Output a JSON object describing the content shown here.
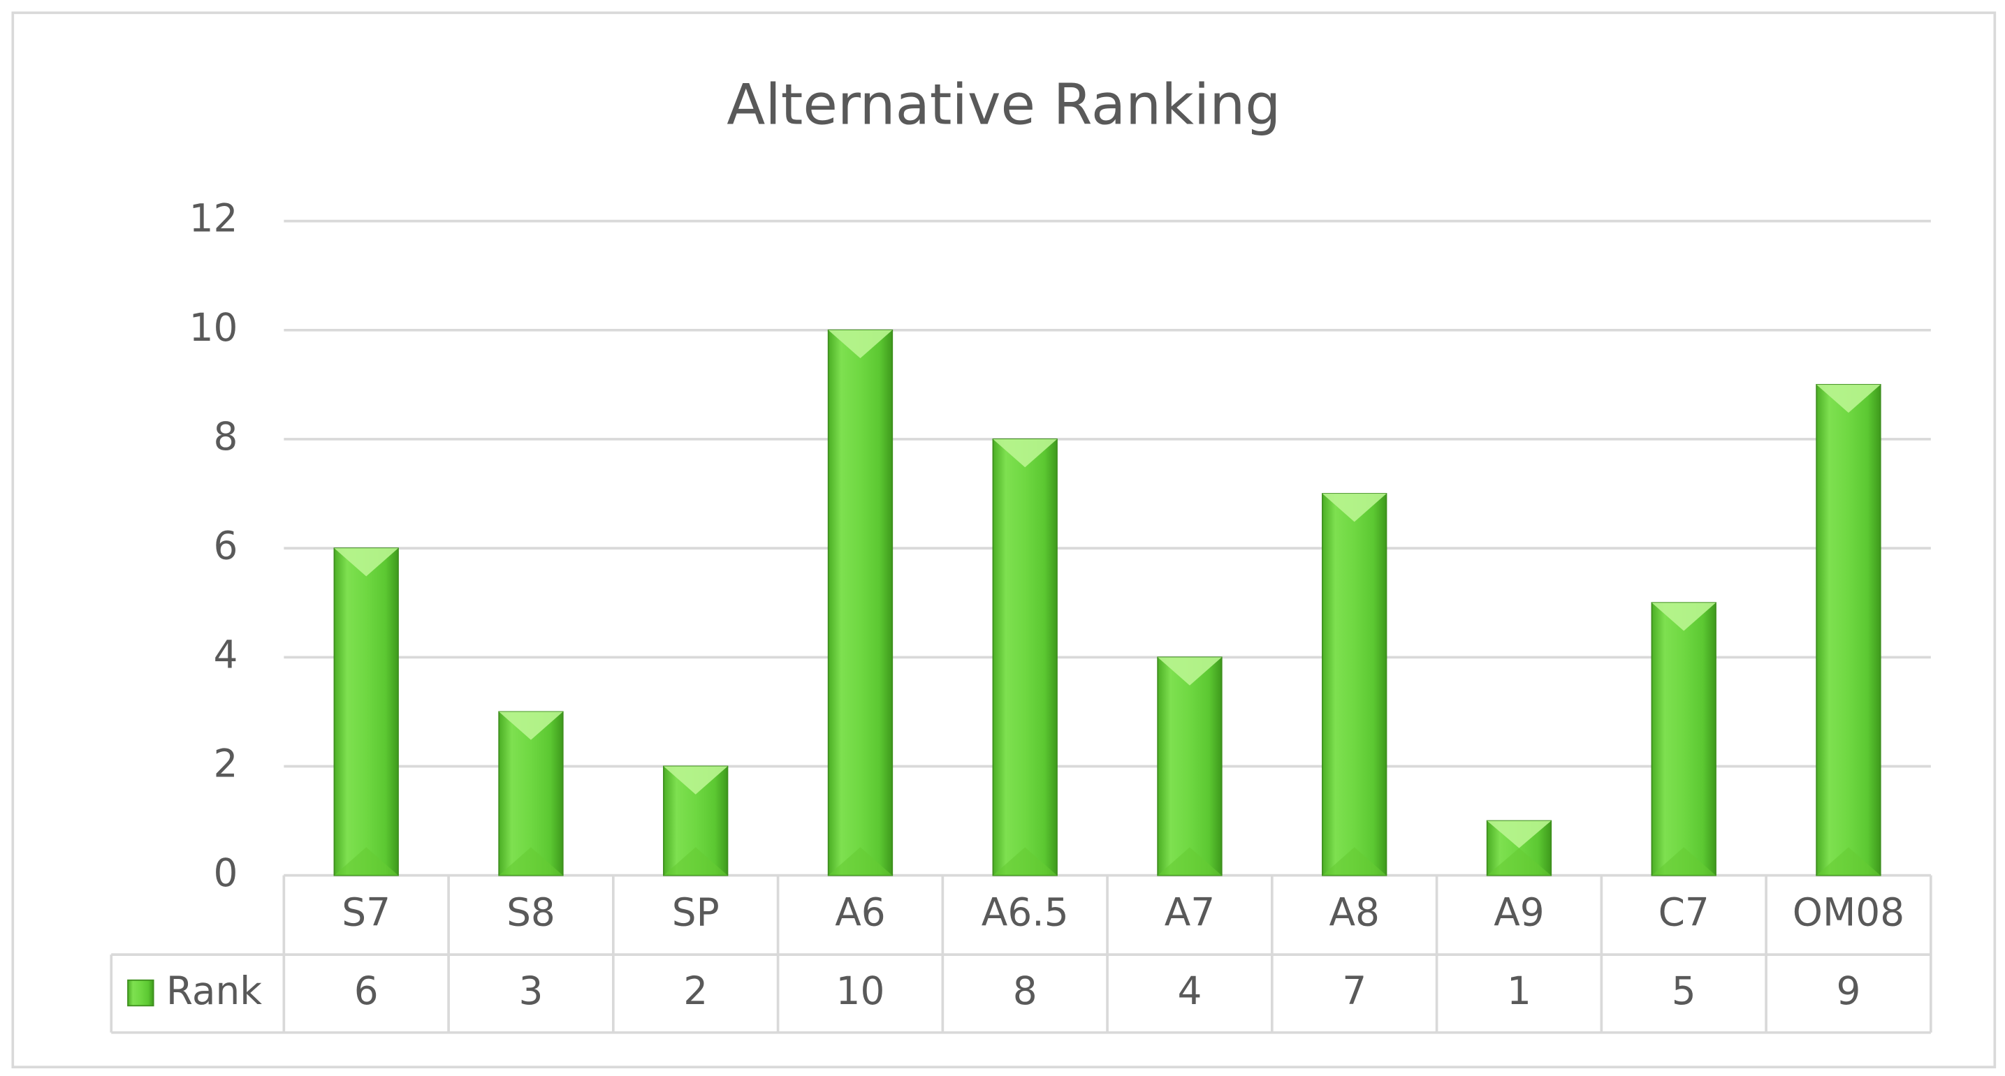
{
  "chart_data": {
    "type": "bar",
    "title": "Alternative Ranking",
    "categories": [
      "S7",
      "S8",
      "SP",
      "A6",
      "A6.5",
      "A7",
      "A8",
      "A9",
      "C7",
      "OM08"
    ],
    "series": [
      {
        "name": "Rank",
        "color": "#66cc33",
        "values": [
          6,
          3,
          2,
          10,
          8,
          4,
          7,
          1,
          5,
          9
        ]
      }
    ],
    "ylim": [
      0,
      12
    ],
    "yticks": [
      0,
      2,
      4,
      6,
      8,
      10,
      12
    ],
    "grid": true,
    "data_table": true
  }
}
